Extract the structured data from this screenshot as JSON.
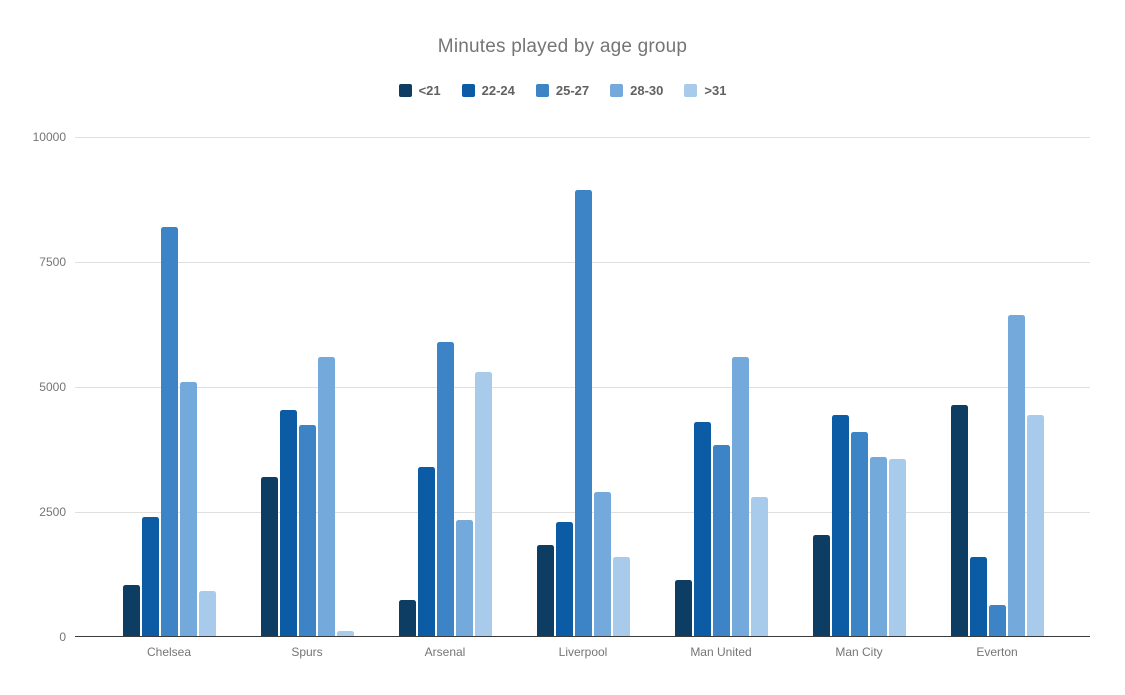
{
  "chart_data": {
    "type": "bar",
    "title": "Minutes played by age group",
    "categories": [
      "Chelsea",
      "Spurs",
      "Arsenal",
      "Liverpool",
      "Man United",
      "Man City",
      "Everton"
    ],
    "series": [
      {
        "name": "<21",
        "color": "#0e3d64",
        "values": [
          1050,
          3200,
          750,
          1850,
          1150,
          2050,
          4650
        ]
      },
      {
        "name": "22-24",
        "color": "#0b5ba5",
        "values": [
          2400,
          4550,
          3400,
          2300,
          4300,
          4450,
          1600
        ]
      },
      {
        "name": "25-27",
        "color": "#3c84c6",
        "values": [
          8200,
          4250,
          5900,
          8950,
          3850,
          4100,
          650
        ]
      },
      {
        "name": "28-30",
        "color": "#74a9dc",
        "values": [
          5100,
          5600,
          2350,
          2900,
          5600,
          3600,
          6450
        ]
      },
      {
        "name": ">31",
        "color": "#a8cbec",
        "values": [
          930,
          130,
          5300,
          1600,
          2800,
          3570,
          4450
        ]
      }
    ],
    "xlabel": "",
    "ylabel": "",
    "ylim": [
      0,
      10000
    ],
    "yticks": [
      0,
      2500,
      5000,
      7500,
      10000
    ],
    "grid": true,
    "legend_position": "top",
    "colors": {
      "title_text": "#757575",
      "axis_text": "#757575",
      "legend_text": "#616161",
      "gridline": "#e0e0e0",
      "axis_line": "#3c3c3c",
      "background": "#ffffff"
    }
  }
}
